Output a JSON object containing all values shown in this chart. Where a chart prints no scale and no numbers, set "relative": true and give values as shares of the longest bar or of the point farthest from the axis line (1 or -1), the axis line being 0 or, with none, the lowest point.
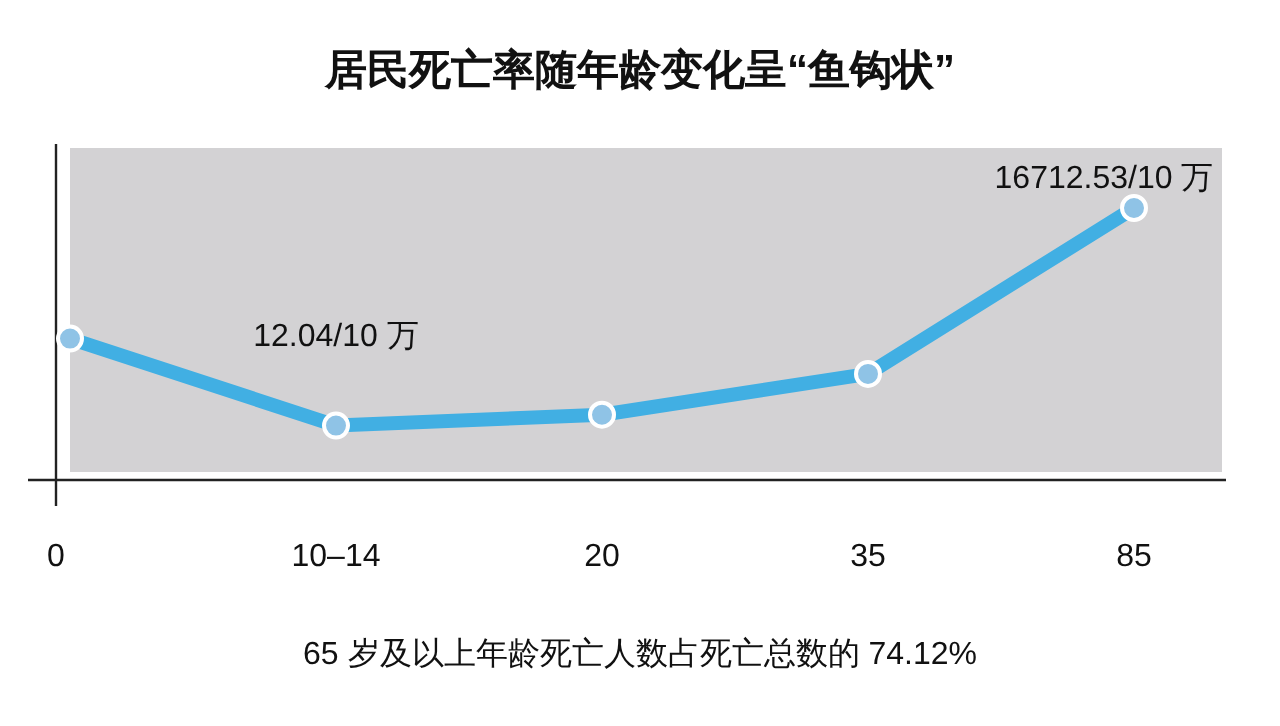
{
  "chart_data": {
    "type": "line",
    "title": "居民死亡率随年龄变化呈“鱼钩状”",
    "categories": [
      "0",
      "10–14",
      "20",
      "35",
      "85"
    ],
    "relative": true,
    "series": [
      {
        "color": "#41afe3",
        "values": [
          0.52,
          0.2,
          0.24,
          0.39,
          1.0
        ]
      }
    ],
    "marker": "circle",
    "annotations": [
      {
        "text": "12.04/10 万",
        "x": "10–14",
        "y": 0.2
      },
      {
        "text": "16712.53/10 万",
        "x": "85",
        "y": 1.0
      },
      "65 岁及以上年龄死亡人数占死亡总数的 74.12%"
    ]
  }
}
